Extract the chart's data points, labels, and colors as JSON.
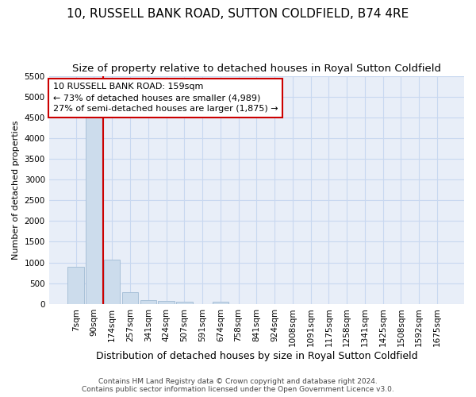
{
  "title": "10, RUSSELL BANK ROAD, SUTTON COLDFIELD, B74 4RE",
  "subtitle": "Size of property relative to detached houses in Royal Sutton Coldfield",
  "xlabel": "Distribution of detached houses by size in Royal Sutton Coldfield",
  "ylabel": "Number of detached properties",
  "footer_line1": "Contains HM Land Registry data © Crown copyright and database right 2024.",
  "footer_line2": "Contains public sector information licensed under the Open Government Licence v3.0.",
  "bar_labels": [
    "7sqm",
    "90sqm",
    "174sqm",
    "257sqm",
    "341sqm",
    "424sqm",
    "507sqm",
    "591sqm",
    "674sqm",
    "758sqm",
    "841sqm",
    "924sqm",
    "1008sqm",
    "1091sqm",
    "1175sqm",
    "1258sqm",
    "1341sqm",
    "1425sqm",
    "1508sqm",
    "1592sqm",
    "1675sqm"
  ],
  "bar_values": [
    900,
    4560,
    1070,
    290,
    90,
    80,
    50,
    0,
    50,
    0,
    0,
    0,
    0,
    0,
    0,
    0,
    0,
    0,
    0,
    0,
    0
  ],
  "bar_color": "#ccdcec",
  "bar_edge_color": "#a8c0d8",
  "red_line_x": 1.5,
  "annotation_text": "10 RUSSELL BANK ROAD: 159sqm\n← 73% of detached houses are smaller (4,989)\n27% of semi-detached houses are larger (1,875) →",
  "annotation_box_facecolor": "#ffffff",
  "annotation_box_edgecolor": "#cc0000",
  "red_line_color": "#cc0000",
  "ylim": [
    0,
    5500
  ],
  "yticks": [
    0,
    500,
    1000,
    1500,
    2000,
    2500,
    3000,
    3500,
    4000,
    4500,
    5000,
    5500
  ],
  "background_color": "#ffffff",
  "plot_background": "#e8eef8",
  "grid_color": "#c8d8f0",
  "title_fontsize": 11,
  "subtitle_fontsize": 9.5,
  "xlabel_fontsize": 9,
  "ylabel_fontsize": 8,
  "tick_fontsize": 7.5,
  "footer_fontsize": 6.5
}
